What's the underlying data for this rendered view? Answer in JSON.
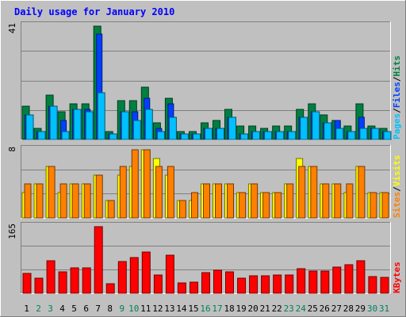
{
  "chart_data": {
    "type": "bar",
    "title": "Daily usage for January 2010",
    "days": [
      "1",
      "2",
      "3",
      "4",
      "5",
      "6",
      "7",
      "8",
      "9",
      "10",
      "11",
      "12",
      "13",
      "14",
      "15",
      "16",
      "17",
      "18",
      "19",
      "20",
      "21",
      "22",
      "23",
      "24",
      "25",
      "26",
      "27",
      "28",
      "29",
      "30",
      "31"
    ],
    "weekend_days": [
      "2",
      "3",
      "9",
      "10",
      "16",
      "17",
      "23",
      "24",
      "30",
      "31"
    ],
    "panels": [
      {
        "name": "hits-files-pages",
        "ymax": 41,
        "ymax_label": "41",
        "axis_label_parts": [
          "Pages",
          "/",
          "Files",
          "/",
          "Hits"
        ],
        "series": [
          {
            "name": "Hits",
            "color": "#008040",
            "values": [
              12,
              4,
              16,
              10,
              13,
              13,
              41,
              3,
              14,
              14,
              19,
              6,
              15,
              3,
              3,
              6,
              7,
              11,
              5,
              5,
              4,
              5,
              5,
              11,
              13,
              9,
              7,
              5,
              13,
              5,
              4
            ]
          },
          {
            "name": "Files",
            "color": "#0040ff",
            "values": [
              9,
              3,
              12,
              7,
              11,
              11,
              38,
              2,
              10,
              10,
              15,
              4,
              13,
              2,
              2,
              4,
              4,
              8,
              2,
              3,
              3,
              3,
              3,
              8,
              10,
              6,
              7,
              3,
              8,
              4,
              3
            ]
          },
          {
            "name": "Pages",
            "color": "#00c0ff",
            "values": [
              9,
              3,
              12,
              3,
              11,
              10,
              17,
              2,
              10,
              7,
              11,
              3,
              8,
              2,
              2,
              4,
              4,
              8,
              2,
              3,
              3,
              3,
              3,
              8,
              10,
              6,
              4,
              3,
              4,
              4,
              3
            ]
          }
        ]
      },
      {
        "name": "visits-sites",
        "ymax": 8,
        "ymax_label": "8",
        "axis_label_parts": [
          "Sites",
          "/",
          "Visits"
        ],
        "series": [
          {
            "name": "Visits",
            "color": "#ffff00",
            "values": [
              3,
              4,
              6,
              3,
              4,
              4,
              5,
              2,
              5,
              6,
              8,
              7,
              5,
              2,
              2,
              4,
              4,
              4,
              3,
              4,
              3,
              3,
              4,
              7,
              6,
              4,
              4,
              3,
              6,
              3,
              3
            ]
          },
          {
            "name": "Sites",
            "color": "#ff8000",
            "values": [
              4,
              4,
              6,
              4,
              4,
              4,
              5,
              2,
              6,
              8,
              8,
              6,
              6,
              2,
              3,
              4,
              4,
              4,
              3,
              4,
              3,
              3,
              4,
              6,
              6,
              4,
              4,
              4,
              6,
              3,
              3
            ]
          }
        ]
      },
      {
        "name": "kbytes",
        "ymax": 165,
        "ymax_label": "165",
        "axis_label_parts": [
          "KBytes"
        ],
        "series": [
          {
            "name": "KBytes",
            "color": "#ff0000",
            "values": [
              50,
              38,
              80,
              53,
              63,
              63,
              165,
              23,
              78,
              88,
              102,
              45,
              95,
              26,
              28,
              52,
              56,
              53,
              37,
              43,
              43,
              45,
              45,
              60,
              55,
              55,
              65,
              70,
              81,
              41,
              39
            ]
          }
        ]
      }
    ],
    "colors": {
      "background": "#c0c0c0",
      "frame": "#ffffff",
      "title": "#0000ff",
      "gridline": "#808080",
      "weekday_label": "#000000",
      "weekend_label": "#00805c"
    }
  }
}
